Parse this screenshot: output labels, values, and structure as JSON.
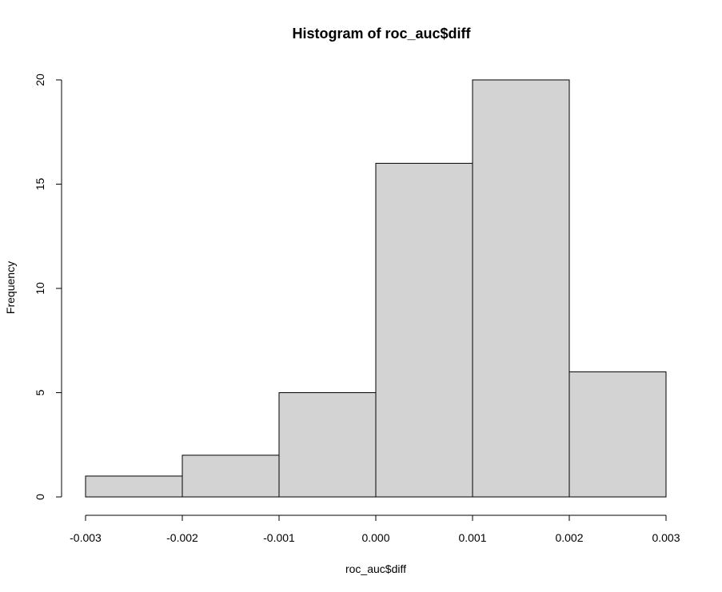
{
  "chart_data": {
    "type": "bar",
    "title": "Histogram of roc_auc$diff",
    "xlabel": "roc_auc$diff",
    "ylabel": "Frequency",
    "bins": [
      {
        "start": -0.003,
        "end": -0.002,
        "count": 1
      },
      {
        "start": -0.002,
        "end": -0.001,
        "count": 2
      },
      {
        "start": -0.001,
        "end": 0.0,
        "count": 5
      },
      {
        "start": 0.0,
        "end": 0.001,
        "count": 16
      },
      {
        "start": 0.001,
        "end": 0.002,
        "count": 20
      },
      {
        "start": 0.002,
        "end": 0.003,
        "count": 6
      }
    ],
    "xlim": [
      -0.003,
      0.003
    ],
    "ylim": [
      0,
      20
    ],
    "xticks": [
      -0.003,
      -0.002,
      -0.001,
      0.0,
      0.001,
      0.002,
      0.003
    ],
    "xtick_labels": [
      "-0.003",
      "-0.002",
      "-0.001",
      "0.000",
      "0.001",
      "0.002",
      "0.003"
    ],
    "yticks": [
      0,
      5,
      10,
      15,
      20
    ],
    "ytick_labels": [
      "0",
      "5",
      "10",
      "15",
      "20"
    ],
    "bar_fill": "#d3d3d3",
    "bar_stroke": "#000000",
    "grid": false
  }
}
